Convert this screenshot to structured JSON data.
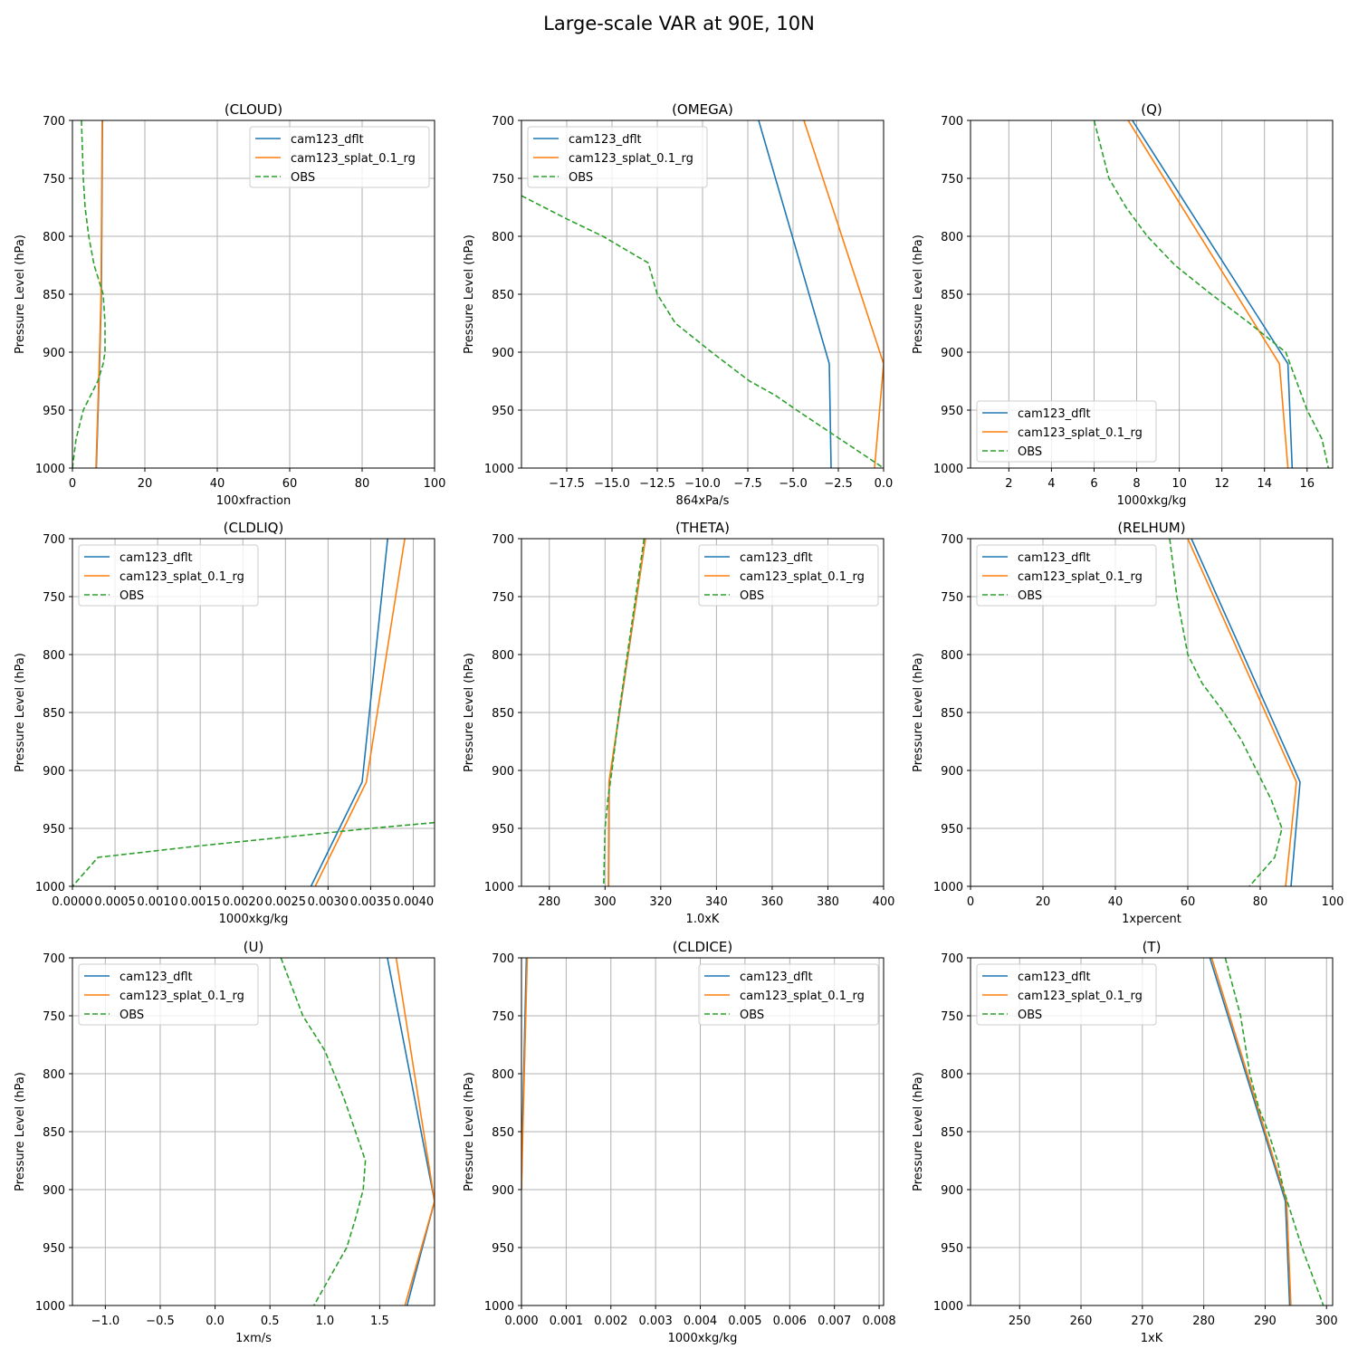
{
  "figure": {
    "title": "Large-scale VAR at 90E, 10N"
  },
  "colors": {
    "cam123_dflt": "#1f77b4",
    "cam123_splat_0.1_rg": "#ff7f0e",
    "OBS": "#2ca02c",
    "grid": "#b0b0b0"
  },
  "chart_data": [
    {
      "type": "line",
      "title": "(CLOUD)",
      "xlabel": "100xfraction",
      "ylabel": "Pressure Level (hPa)",
      "xlim": [
        0,
        100
      ],
      "xticks": [
        "0",
        "20",
        "40",
        "60",
        "80",
        "100"
      ],
      "xtick_values": [
        0,
        20,
        40,
        60,
        80,
        100
      ],
      "ylim": [
        1000,
        700
      ],
      "yticks": [
        "700",
        "750",
        "800",
        "850",
        "900",
        "950",
        "1000"
      ],
      "ytick_values": [
        700,
        750,
        800,
        850,
        900,
        950,
        1000
      ],
      "legend": "upper right",
      "series": [
        {
          "name": "cam123_dflt",
          "style": "solid",
          "x": [
            8.3,
            8.0,
            7.5,
            6.6
          ],
          "y": [
            700,
            850,
            910,
            1000
          ]
        },
        {
          "name": "cam123_splat_0.1_rg",
          "style": "solid",
          "x": [
            8.2,
            7.9,
            7.4,
            6.5
          ],
          "y": [
            700,
            850,
            910,
            1000
          ]
        },
        {
          "name": "OBS",
          "style": "dashed",
          "x": [
            2.5,
            3,
            3.5,
            4.5,
            6,
            8.5,
            9,
            9,
            8.5,
            7,
            3,
            1,
            0
          ],
          "y": [
            700,
            750,
            775,
            800,
            825,
            850,
            875,
            900,
            910,
            925,
            950,
            975,
            1000
          ]
        }
      ]
    },
    {
      "type": "line",
      "title": "(OMEGA)",
      "xlabel": "864xPa/s",
      "ylabel": "Pressure Level (hPa)",
      "xlim": [
        -20,
        0
      ],
      "xticks": [
        "−17.5",
        "−15.0",
        "−12.5",
        "−10.0",
        "−7.5",
        "−5.0",
        "−2.5",
        "0.0"
      ],
      "xtick_values": [
        -17.5,
        -15,
        -12.5,
        -10,
        -7.5,
        -5,
        -2.5,
        0
      ],
      "ylim": [
        1000,
        700
      ],
      "yticks": [
        "700",
        "750",
        "800",
        "850",
        "900",
        "950",
        "1000"
      ],
      "ytick_values": [
        700,
        750,
        800,
        850,
        900,
        950,
        1000
      ],
      "legend": "upper left",
      "series": [
        {
          "name": "cam123_dflt",
          "style": "solid",
          "x": [
            -6.9,
            -3.0,
            -2.9
          ],
          "y": [
            700,
            910,
            1000
          ]
        },
        {
          "name": "cam123_splat_0.1_rg",
          "style": "solid",
          "x": [
            -4.4,
            0.0,
            -0.5
          ],
          "y": [
            700,
            910,
            1000
          ]
        },
        {
          "name": "OBS",
          "style": "dashed",
          "x": [
            -20,
            -17.5,
            -15.5,
            -13.0,
            -12.5,
            -11.5,
            -9.5,
            -7.4,
            -6.0,
            -4.8,
            -2.4,
            0.0
          ],
          "y": [
            765,
            785,
            800,
            823,
            850,
            875,
            900,
            925,
            937,
            950,
            975,
            1000
          ]
        }
      ]
    },
    {
      "type": "line",
      "title": "(Q)",
      "xlabel": "1000xkg/kg",
      "ylabel": "Pressure Level (hPa)",
      "xlim": [
        0.2,
        17.2
      ],
      "xticks": [
        "2",
        "4",
        "6",
        "8",
        "10",
        "12",
        "14",
        "16"
      ],
      "xtick_values": [
        2,
        4,
        6,
        8,
        10,
        12,
        14,
        16
      ],
      "ylim": [
        1000,
        700
      ],
      "yticks": [
        "700",
        "750",
        "800",
        "850",
        "900",
        "950",
        "1000"
      ],
      "ytick_values": [
        700,
        750,
        800,
        850,
        900,
        950,
        1000
      ],
      "legend": "lower left",
      "series": [
        {
          "name": "cam123_dflt",
          "style": "solid",
          "x": [
            7.8,
            15.1,
            15.3
          ],
          "y": [
            700,
            910,
            1000
          ]
        },
        {
          "name": "cam123_splat_0.1_rg",
          "style": "solid",
          "x": [
            7.6,
            14.7,
            15.1
          ],
          "y": [
            700,
            910,
            1000
          ]
        },
        {
          "name": "OBS",
          "style": "dashed",
          "x": [
            6.0,
            6.7,
            7.5,
            8.5,
            9.8,
            11.5,
            13.3,
            15.0,
            16.0,
            16.7,
            17.0
          ],
          "y": [
            700,
            750,
            775,
            800,
            825,
            850,
            875,
            900,
            950,
            975,
            1000
          ]
        }
      ]
    },
    {
      "type": "line",
      "title": "(CLDLIQ)",
      "xlabel": "1000xkg/kg",
      "ylabel": "Pressure Level (hPa)",
      "xlim": [
        0,
        0.00425
      ],
      "xticks": [
        "0.0000",
        "0.0005",
        "0.0010",
        "0.0015",
        "0.0020",
        "0.0025",
        "0.0030",
        "0.0035",
        "0.0040"
      ],
      "xtick_values": [
        0,
        0.0005,
        0.001,
        0.0015,
        0.002,
        0.0025,
        0.003,
        0.0035,
        0.004
      ],
      "ylim": [
        1000,
        700
      ],
      "yticks": [
        "700",
        "750",
        "800",
        "850",
        "900",
        "950",
        "1000"
      ],
      "ytick_values": [
        700,
        750,
        800,
        850,
        900,
        950,
        1000
      ],
      "legend": "upper left",
      "series": [
        {
          "name": "cam123_dflt",
          "style": "solid",
          "x": [
            0.0037,
            0.0034,
            0.0028
          ],
          "y": [
            700,
            910,
            1000
          ]
        },
        {
          "name": "cam123_splat_0.1_rg",
          "style": "solid",
          "x": [
            0.0039,
            0.00345,
            0.00285
          ],
          "y": [
            700,
            910,
            1000
          ]
        },
        {
          "name": "OBS",
          "style": "dashed",
          "x": [
            0.00425,
            0.0035,
            0.0015,
            0.0003,
            0.0
          ],
          "y": [
            945,
            950,
            965,
            975,
            1000
          ]
        }
      ]
    },
    {
      "type": "line",
      "title": "(THETA)",
      "xlabel": "1.0xK",
      "ylabel": "Pressure Level (hPa)",
      "xlim": [
        270,
        400
      ],
      "xticks": [
        "280",
        "300",
        "320",
        "340",
        "360",
        "380",
        "400"
      ],
      "xtick_values": [
        280,
        300,
        320,
        340,
        360,
        380,
        400
      ],
      "ylim": [
        1000,
        700
      ],
      "yticks": [
        "700",
        "750",
        "800",
        "850",
        "900",
        "950",
        "1000"
      ],
      "ytick_values": [
        700,
        750,
        800,
        850,
        900,
        950,
        1000
      ],
      "legend": "upper right",
      "series": [
        {
          "name": "cam123_dflt",
          "style": "solid",
          "x": [
            314.5,
            301.5,
            301.3
          ],
          "y": [
            700,
            910,
            1000
          ]
        },
        {
          "name": "cam123_splat_0.1_rg",
          "style": "solid",
          "x": [
            314.5,
            301.4,
            301.2
          ],
          "y": [
            700,
            910,
            1000
          ]
        },
        {
          "name": "OBS",
          "style": "dashed",
          "x": [
            314.0,
            311.0,
            308.0,
            305.0,
            302.5,
            301.0,
            300.0,
            299.5
          ],
          "y": [
            700,
            750,
            800,
            850,
            900,
            925,
            950,
            1000
          ]
        }
      ]
    },
    {
      "type": "line",
      "title": "(RELHUM)",
      "xlabel": "1xpercent",
      "ylabel": "Pressure Level (hPa)",
      "xlim": [
        0,
        100
      ],
      "xticks": [
        "0",
        "20",
        "40",
        "60",
        "80",
        "100"
      ],
      "xtick_values": [
        0,
        20,
        40,
        60,
        80,
        100
      ],
      "ylim": [
        1000,
        700
      ],
      "yticks": [
        "700",
        "750",
        "800",
        "850",
        "900",
        "950",
        "1000"
      ],
      "ytick_values": [
        700,
        750,
        800,
        850,
        900,
        950,
        1000
      ],
      "legend": "upper left",
      "series": [
        {
          "name": "cam123_dflt",
          "style": "solid",
          "x": [
            61,
            91,
            88.5
          ],
          "y": [
            700,
            910,
            1000
          ]
        },
        {
          "name": "cam123_splat_0.1_rg",
          "style": "solid",
          "x": [
            60,
            90,
            87
          ],
          "y": [
            700,
            910,
            1000
          ]
        },
        {
          "name": "OBS",
          "style": "dashed",
          "x": [
            55,
            57,
            60,
            64,
            70,
            75,
            79,
            83,
            86,
            84,
            77
          ],
          "y": [
            700,
            750,
            800,
            825,
            850,
            875,
            900,
            925,
            950,
            975,
            1000
          ]
        }
      ]
    },
    {
      "type": "line",
      "title": "(U)",
      "xlabel": "1xm/s",
      "ylabel": "Pressure Level (hPa)",
      "xlim": [
        -1.3,
        2.0
      ],
      "xticks": [
        "−1.0",
        "−0.5",
        "0.0",
        "0.5",
        "1.0",
        "1.5"
      ],
      "xtick_values": [
        -1,
        -0.5,
        0,
        0.5,
        1,
        1.5
      ],
      "ylim": [
        1000,
        700
      ],
      "yticks": [
        "700",
        "750",
        "800",
        "850",
        "900",
        "950",
        "1000"
      ],
      "ytick_values": [
        700,
        750,
        800,
        850,
        900,
        950,
        1000
      ],
      "legend": "upper left",
      "series": [
        {
          "name": "cam123_dflt",
          "style": "solid",
          "x": [
            1.57,
            2.0,
            1.75
          ],
          "y": [
            700,
            910,
            1000
          ]
        },
        {
          "name": "cam123_splat_0.1_rg",
          "style": "solid",
          "x": [
            1.65,
            2.0,
            1.73
          ],
          "y": [
            700,
            910,
            1000
          ]
        },
        {
          "name": "OBS",
          "style": "dashed",
          "x": [
            0.6,
            0.8,
            1.0,
            1.17,
            1.28,
            1.37,
            1.35,
            1.28,
            1.2,
            1.05,
            0.9
          ],
          "y": [
            700,
            750,
            780,
            820,
            850,
            875,
            900,
            925,
            950,
            975,
            1000
          ]
        }
      ]
    },
    {
      "type": "line",
      "title": "(CLDICE)",
      "xlabel": "1000xkg/kg",
      "ylabel": "Pressure Level (hPa)",
      "xlim": [
        0,
        0.0081
      ],
      "xticks": [
        "0.000",
        "0.001",
        "0.002",
        "0.003",
        "0.004",
        "0.005",
        "0.006",
        "0.007",
        "0.008"
      ],
      "xtick_values": [
        0,
        0.001,
        0.002,
        0.003,
        0.004,
        0.005,
        0.006,
        0.007,
        0.008
      ],
      "ylim": [
        1000,
        700
      ],
      "yticks": [
        "700",
        "750",
        "800",
        "850",
        "900",
        "950",
        "1000"
      ],
      "ytick_values": [
        700,
        750,
        800,
        850,
        900,
        950,
        1000
      ],
      "legend": "upper right",
      "series": [
        {
          "name": "cam123_dflt",
          "style": "solid",
          "x": [
            0.00011,
            2e-05,
            0.0
          ],
          "y": [
            700,
            850,
            900
          ]
        },
        {
          "name": "cam123_splat_0.1_rg",
          "style": "solid",
          "x": [
            0.00013,
            3e-05,
            0.0
          ],
          "y": [
            700,
            850,
            900
          ]
        },
        {
          "name": "OBS",
          "style": "dashed",
          "x": [],
          "y": []
        }
      ]
    },
    {
      "type": "line",
      "title": "(T)",
      "xlabel": "1xK",
      "ylabel": "Pressure Level (hPa)",
      "xlim": [
        242,
        301
      ],
      "xticks": [
        "250",
        "260",
        "270",
        "280",
        "290",
        "300"
      ],
      "xtick_values": [
        250,
        260,
        270,
        280,
        290,
        300
      ],
      "ylim": [
        1000,
        700
      ],
      "yticks": [
        "700",
        "750",
        "800",
        "850",
        "900",
        "950",
        "1000"
      ],
      "ytick_values": [
        700,
        750,
        800,
        850,
        900,
        950,
        1000
      ],
      "legend": "upper left",
      "series": [
        {
          "name": "cam123_dflt",
          "style": "solid",
          "x": [
            281,
            293.3,
            294
          ],
          "y": [
            700,
            910,
            1000
          ]
        },
        {
          "name": "cam123_splat_0.1_rg",
          "style": "solid",
          "x": [
            281.3,
            293.5,
            294.2
          ],
          "y": [
            700,
            910,
            1000
          ]
        },
        {
          "name": "OBS",
          "style": "dashed",
          "x": [
            283.5,
            286,
            287.5,
            289,
            290.5,
            292,
            293,
            294.5,
            296,
            299.5
          ],
          "y": [
            700,
            750,
            800,
            830,
            850,
            875,
            900,
            925,
            950,
            1000
          ]
        }
      ]
    }
  ]
}
